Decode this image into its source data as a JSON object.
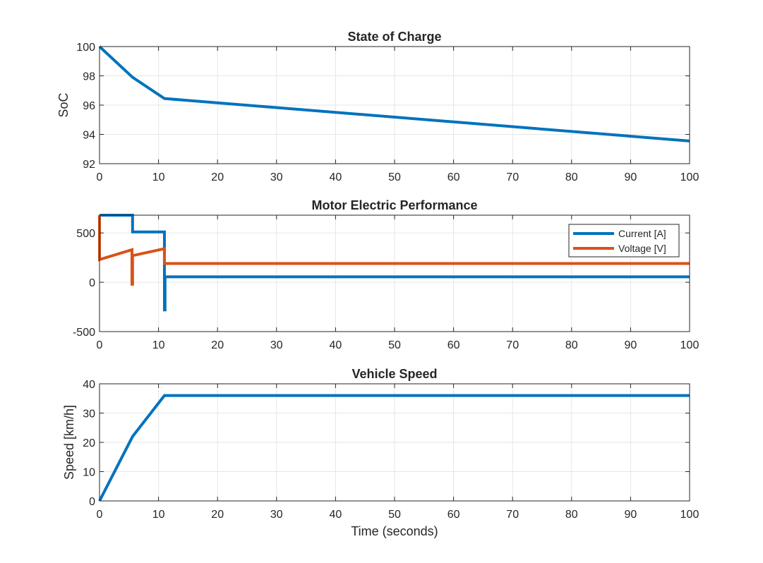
{
  "colors": {
    "blue": "#0072BD",
    "orange": "#D95319",
    "grid": "#e6e6e6",
    "axis": "#262626",
    "background": "#ffffff"
  },
  "chart_data": [
    {
      "type": "line",
      "title": "State of Charge",
      "xlabel": "",
      "ylabel": "SoC",
      "xlim": [
        0,
        100
      ],
      "ylim": [
        92,
        100
      ],
      "xticks": [
        0,
        10,
        20,
        30,
        40,
        50,
        60,
        70,
        80,
        90,
        100
      ],
      "yticks": [
        92,
        94,
        96,
        98,
        100
      ],
      "grid": true,
      "legend": null,
      "series": [
        {
          "color": "#0072BD",
          "x": [
            0,
            5.6,
            11,
            100
          ],
          "y": [
            100,
            97.9,
            96.45,
            93.55
          ]
        }
      ]
    },
    {
      "type": "line",
      "title": "Motor Electric Performance",
      "xlabel": "",
      "ylabel": "",
      "xlim": [
        0,
        100
      ],
      "ylim": [
        -500,
        680
      ],
      "xticks": [
        0,
        10,
        20,
        30,
        40,
        50,
        60,
        70,
        80,
        90,
        100
      ],
      "yticks": [
        -500,
        0,
        500
      ],
      "grid": true,
      "legend": "top-right",
      "series": [
        {
          "name": "Current [A]",
          "color": "#0072BD",
          "x": [
            0,
            5.6,
            5.6,
            11,
            11,
            11.1,
            11.1,
            100
          ],
          "y": [
            680,
            680,
            510,
            510,
            -280,
            -280,
            55,
            55
          ]
        },
        {
          "name": "Voltage [V]",
          "color": "#D95319",
          "x": [
            0,
            0,
            5.5,
            5.5,
            5.6,
            5.6,
            11,
            11,
            11.1,
            11.1,
            100
          ],
          "y": [
            680,
            230,
            330,
            -20,
            -20,
            270,
            340,
            190,
            190,
            190,
            190
          ]
        }
      ]
    },
    {
      "type": "line",
      "title": "Vehicle Speed",
      "xlabel": "Time (seconds)",
      "ylabel": "Speed [km/h]",
      "xlim": [
        0,
        100
      ],
      "ylim": [
        0,
        40
      ],
      "xticks": [
        0,
        10,
        20,
        30,
        40,
        50,
        60,
        70,
        80,
        90,
        100
      ],
      "yticks": [
        0,
        10,
        20,
        30,
        40
      ],
      "grid": true,
      "legend": null,
      "series": [
        {
          "color": "#0072BD",
          "x": [
            0,
            5.6,
            11,
            100
          ],
          "y": [
            0,
            22,
            36,
            36
          ]
        }
      ]
    }
  ]
}
